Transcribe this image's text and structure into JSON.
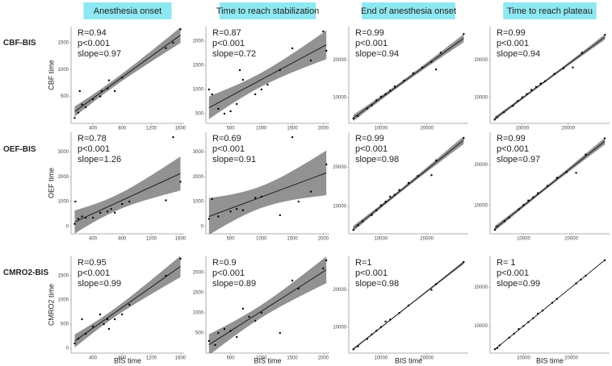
{
  "columns": [
    "Anesthesia onset",
    "Time to reach stabilization",
    "End of anesthesia onset",
    "Time to reach plateau"
  ],
  "rows": [
    "CBF-BIS",
    "OEF-BIS",
    "CMRO2-BIS"
  ],
  "y_labels": [
    "CBF time",
    "OEF time",
    "CMRO2 time"
  ],
  "x_label": "BIS time",
  "chart_data": [
    {
      "type": "scatter",
      "color": "#000000",
      "band_color": "#7f7f7f",
      "stats": [
        "R=0.94",
        "p<0.001",
        "slope=0.97"
      ],
      "x": [
        150,
        200,
        250,
        220,
        300,
        400,
        500,
        520,
        600,
        620,
        700,
        800,
        1400,
        1500,
        1600
      ],
      "y": [
        100,
        200,
        350,
        600,
        300,
        450,
        500,
        600,
        650,
        800,
        600,
        850,
        1400,
        1500,
        1750
      ],
      "xlim": [
        100,
        1650
      ],
      "ylim": [
        0,
        1800
      ],
      "xticks": [
        400,
        800,
        1200,
        1600
      ],
      "yticks": [
        500,
        1000,
        1500
      ]
    },
    {
      "type": "scatter",
      "color": "#000000",
      "band_color": "#7f7f7f",
      "stats": [
        "R=0.87",
        "p<0.001",
        "slope=0.72"
      ],
      "x": [
        150,
        200,
        300,
        400,
        500,
        600,
        650,
        700,
        900,
        1000,
        1100,
        1300,
        1500,
        1800,
        2000,
        2050
      ],
      "y": [
        1000,
        900,
        600,
        500,
        550,
        700,
        1400,
        1200,
        900,
        1000,
        1100,
        1400,
        1850,
        1600,
        2200,
        1800
      ],
      "xlim": [
        100,
        2100
      ],
      "ylim": [
        300,
        2300
      ],
      "xticks": [
        500,
        1000,
        1500,
        2000
      ],
      "yticks": [
        500,
        1000,
        1500,
        2000
      ]
    },
    {
      "type": "scatter",
      "color": "#000000",
      "band_color": "#7f7f7f",
      "stats": [
        "R=0.99",
        "p<0.001",
        "slope=0.94"
      ],
      "x": [
        4000,
        5000,
        7000,
        8000,
        9000,
        10000,
        11000,
        12000,
        13000,
        15000,
        17000,
        19000,
        21000,
        22000,
        23000,
        28000
      ],
      "y": [
        4300,
        5000,
        7000,
        7900,
        9200,
        10200,
        10800,
        11800,
        12900,
        14500,
        16500,
        18000,
        19500,
        17500,
        22000,
        27000
      ],
      "xlim": [
        3000,
        29000
      ],
      "ylim": [
        3000,
        29000
      ],
      "xticks": [
        10000,
        20000
      ],
      "yticks": [
        10000,
        20000
      ]
    },
    {
      "type": "scatter",
      "color": "#000000",
      "band_color": "#7f7f7f",
      "stats": [
        "R=0.99",
        "p<0.001",
        "slope=0.94"
      ],
      "x": [
        4000,
        4500,
        6000,
        8000,
        9000,
        10000,
        11000,
        12000,
        13000,
        14000,
        15000,
        17000,
        19000,
        21000,
        23000,
        28000
      ],
      "y": [
        4000,
        4600,
        6000,
        7700,
        9000,
        10000,
        10900,
        12000,
        12800,
        13700,
        14300,
        16300,
        17800,
        18000,
        22000,
        26800
      ],
      "xlim": [
        3000,
        29000
      ],
      "ylim": [
        3000,
        29000
      ],
      "xticks": [
        10000,
        20000
      ],
      "yticks": [
        10000,
        20000
      ]
    },
    {
      "type": "scatter",
      "color": "#000000",
      "band_color": "#7f7f7f",
      "stats": [
        "R=0.78",
        "p<0.001",
        "slope=1.26"
      ],
      "x": [
        150,
        160,
        200,
        250,
        300,
        400,
        500,
        600,
        650,
        700,
        800,
        900,
        1400,
        1500,
        1600
      ],
      "y": [
        100,
        1000,
        300,
        400,
        350,
        350,
        550,
        600,
        700,
        550,
        900,
        1000,
        1050,
        3600,
        1800
      ],
      "xlim": [
        100,
        1650
      ],
      "ylim": [
        -300,
        3800
      ],
      "xticks": [
        400,
        800,
        1200,
        1600
      ],
      "yticks": [
        0,
        1000,
        2000,
        3000
      ]
    },
    {
      "type": "scatter",
      "color": "#000000",
      "band_color": "#7f7f7f",
      "stats": [
        "R=0.69",
        "p<0.001",
        "slope=0.91"
      ],
      "x": [
        150,
        200,
        300,
        500,
        600,
        700,
        900,
        1000,
        1300,
        1500,
        1600,
        1800,
        2050
      ],
      "y": [
        300,
        1100,
        400,
        600,
        700,
        650,
        1150,
        1200,
        450,
        3600,
        1000,
        1400,
        2500
      ],
      "xlim": [
        100,
        2100
      ],
      "ylim": [
        -300,
        3800
      ],
      "xticks": [
        500,
        1000,
        1500,
        2000
      ],
      "yticks": [
        0,
        1000,
        2000,
        3000
      ]
    },
    {
      "type": "scatter",
      "color": "#000000",
      "band_color": "#7f7f7f",
      "stats": [
        "R=0.99",
        "p<0.001",
        "slope=0.98"
      ],
      "x": [
        4000,
        5000,
        6000,
        8000,
        9000,
        10000,
        11000,
        12000,
        13000,
        14000,
        16000,
        18000,
        21000,
        22000,
        28000
      ],
      "y": [
        4000,
        5200,
        6200,
        7800,
        9000,
        10300,
        11200,
        12500,
        13000,
        14200,
        16000,
        17800,
        18000,
        21800,
        27500
      ],
      "xlim": [
        3000,
        29000
      ],
      "ylim": [
        3000,
        29000
      ],
      "xticks": [
        10000,
        20000
      ],
      "yticks": [
        10000,
        20000
      ]
    },
    {
      "type": "scatter",
      "color": "#000000",
      "band_color": "#7f7f7f",
      "stats": [
        "R=0.99",
        "p<0.001",
        "slope=0.97"
      ],
      "x": [
        4000,
        4500,
        6000,
        7000,
        9000,
        10000,
        11000,
        12000,
        13000,
        15000,
        17000,
        19000,
        21000,
        23000,
        27000
      ],
      "y": [
        4000,
        4800,
        6100,
        7000,
        9000,
        10100,
        11200,
        12000,
        13000,
        14800,
        16800,
        18200,
        18000,
        22500,
        26500
      ],
      "xlim": [
        3000,
        28000
      ],
      "ylim": [
        3000,
        28000
      ],
      "xticks": [
        10000,
        20000
      ],
      "yticks": [
        10000,
        20000
      ]
    },
    {
      "type": "scatter",
      "color": "#000000",
      "band_color": "#7f7f7f",
      "stats": [
        "R=0.95",
        "p<0.001",
        "slope=0.99"
      ],
      "x": [
        150,
        200,
        250,
        300,
        400,
        500,
        550,
        600,
        620,
        700,
        800,
        900,
        1400,
        1600
      ],
      "y": [
        100,
        200,
        600,
        300,
        450,
        700,
        500,
        600,
        400,
        600,
        700,
        900,
        1500,
        1850
      ],
      "xlim": [
        100,
        1650
      ],
      "ylim": [
        -100,
        1900
      ],
      "xticks": [
        400,
        800,
        1200,
        1600
      ],
      "yticks": [
        0,
        500,
        1000,
        1500
      ]
    },
    {
      "type": "scatter",
      "color": "#000000",
      "band_color": "#7f7f7f",
      "stats": [
        "R=0.9",
        "p<0.001",
        "slope=0.89"
      ],
      "x": [
        150,
        250,
        300,
        400,
        500,
        600,
        700,
        800,
        900,
        1000,
        1300,
        1500,
        1600,
        2000,
        2050
      ],
      "y": [
        300,
        200,
        500,
        600,
        550,
        400,
        1100,
        900,
        800,
        1000,
        500,
        1800,
        1600,
        2100,
        2300
      ],
      "xlim": [
        100,
        2100
      ],
      "ylim": [
        0,
        2400
      ],
      "xticks": [
        500,
        1000,
        1500,
        2000
      ],
      "yticks": [
        500,
        1000,
        1500,
        2000
      ]
    },
    {
      "type": "scatter",
      "color": "#000000",
      "band_color": "#7f7f7f",
      "stats": [
        "R=1",
        "p<0.001",
        "slope=0.98"
      ],
      "x": [
        4000,
        5000,
        7000,
        8000,
        9000,
        10000,
        11000,
        12000,
        14000,
        16000,
        21000,
        22000,
        28000
      ],
      "y": [
        4000,
        4800,
        6800,
        8000,
        9000,
        10000,
        11500,
        12000,
        13800,
        15800,
        20000,
        21500,
        27500
      ],
      "xlim": [
        3000,
        29000
      ],
      "ylim": [
        3000,
        29000
      ],
      "xticks": [
        10000,
        20000
      ],
      "yticks": [
        10000,
        20000
      ]
    },
    {
      "type": "scatter",
      "color": "#000000",
      "band_color": "#7f7f7f",
      "stats": [
        "R= 1",
        "p<0.001",
        "slope=0.99"
      ],
      "x": [
        4000,
        4500,
        5000,
        7000,
        8000,
        9000,
        10000,
        11000,
        12000,
        13000,
        14000,
        16000,
        17000,
        21000,
        22000,
        23000,
        27000
      ],
      "y": [
        4000,
        4300,
        5000,
        7000,
        8000,
        9200,
        10000,
        11000,
        12000,
        13200,
        14000,
        16000,
        17000,
        21000,
        22000,
        23000,
        27000
      ],
      "xlim": [
        3000,
        28000
      ],
      "ylim": [
        3000,
        28000
      ],
      "xticks": [
        10000,
        20000
      ],
      "yticks": [
        10000,
        20000
      ]
    }
  ]
}
